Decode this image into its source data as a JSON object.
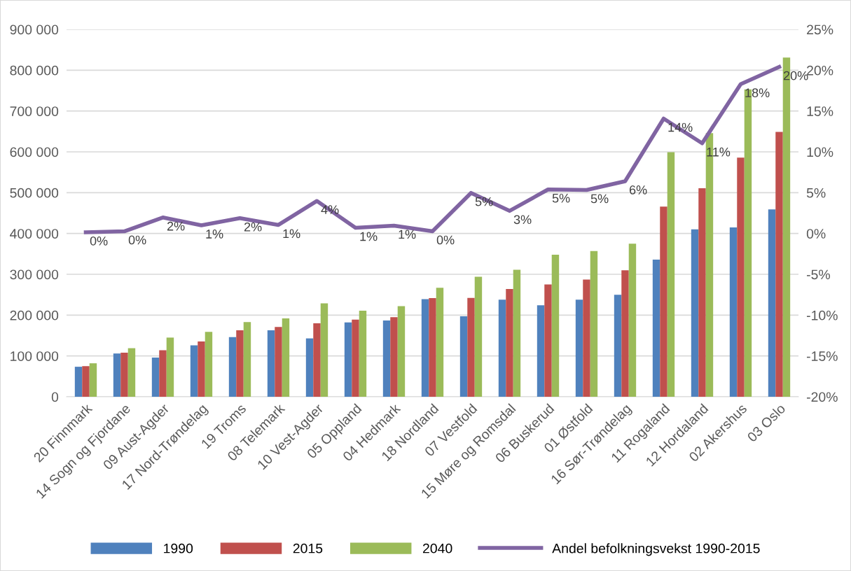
{
  "chart_data": {
    "type": "bar",
    "categories": [
      "20 Finnmark",
      "14 Sogn og Fjordane",
      "09 Aust-Agder",
      "17 Nord-Trøndelag",
      "19 Troms",
      "08 Telemark",
      "10 Vest-Agder",
      "05 Oppland",
      "04 Hedmark",
      "18 Nordland",
      "07 Vestfold",
      "15 Møre og Romsdal",
      "06 Buskerud",
      "01 Østfold",
      "16 Sør-Trøndelag",
      "11 Rogaland",
      "12 Hordaland",
      "02 Akershus",
      "03 Oslo"
    ],
    "series": [
      {
        "name": "1990",
        "color": "#4f81bd",
        "values": [
          73500,
          106000,
          96000,
          126000,
          146000,
          163000,
          143000,
          182000,
          187000,
          239000,
          197000,
          238000,
          224000,
          238000,
          250000,
          336000,
          410000,
          415000,
          459000
        ]
      },
      {
        "name": "2015",
        "color": "#c0504d",
        "values": [
          75000,
          108000,
          114000,
          135500,
          163000,
          171000,
          180000,
          189000,
          195000,
          241500,
          242000,
          264000,
          275000,
          287000,
          310000,
          466000,
          511000,
          586000,
          649000
        ]
      },
      {
        "name": "2040",
        "color": "#9bbb59",
        "values": [
          82000,
          119000,
          145000,
          159000,
          183000,
          192000,
          229000,
          211000,
          222000,
          267000,
          294000,
          311000,
          348000,
          357000,
          375000,
          599000,
          646000,
          753000,
          831000
        ]
      },
      {
        "name": "Andel befolkningsvekst 1990-2015",
        "type": "line",
        "axis": "y2",
        "color": "#8064a2",
        "values": [
          0.15,
          0.27,
          1.96,
          1.0,
          1.87,
          1.05,
          3.98,
          0.7,
          0.96,
          0.27,
          4.97,
          2.77,
          5.39,
          5.33,
          6.4,
          14.07,
          11.05,
          18.3,
          20.4
        ],
        "value_labels": [
          "0%",
          "0%",
          "2%",
          "1%",
          "2%",
          "1%",
          "4%",
          "1%",
          "1%",
          "0%",
          "5%",
          "3%",
          "5%",
          "5%",
          "6%",
          "14%",
          "11%",
          "18%",
          "20%"
        ]
      }
    ],
    "ylim": [
      0,
      900000
    ],
    "yticks": [
      {
        "value": 0,
        "label": "0"
      },
      {
        "value": 100000,
        "label": "100 000"
      },
      {
        "value": 200000,
        "label": "200 000"
      },
      {
        "value": 300000,
        "label": "300 000"
      },
      {
        "value": 400000,
        "label": "400 000"
      },
      {
        "value": 500000,
        "label": "500 000"
      },
      {
        "value": 600000,
        "label": "600 000"
      },
      {
        "value": 700000,
        "label": "700 000"
      },
      {
        "value": 800000,
        "label": "800 000"
      },
      {
        "value": 900000,
        "label": "900 000"
      }
    ],
    "y2lim": [
      -20,
      25
    ],
    "y2ticks": [
      {
        "value": -20,
        "label": "-20%"
      },
      {
        "value": -15,
        "label": "-15%"
      },
      {
        "value": -10,
        "label": "-10%"
      },
      {
        "value": -5,
        "label": "-5%"
      },
      {
        "value": 0,
        "label": "0%"
      },
      {
        "value": 5,
        "label": "5%"
      },
      {
        "value": 10,
        "label": "10%"
      },
      {
        "value": 15,
        "label": "15%"
      },
      {
        "value": 20,
        "label": "20%"
      },
      {
        "value": 25,
        "label": "25%"
      }
    ],
    "grid": "y",
    "legend": "bottom"
  }
}
